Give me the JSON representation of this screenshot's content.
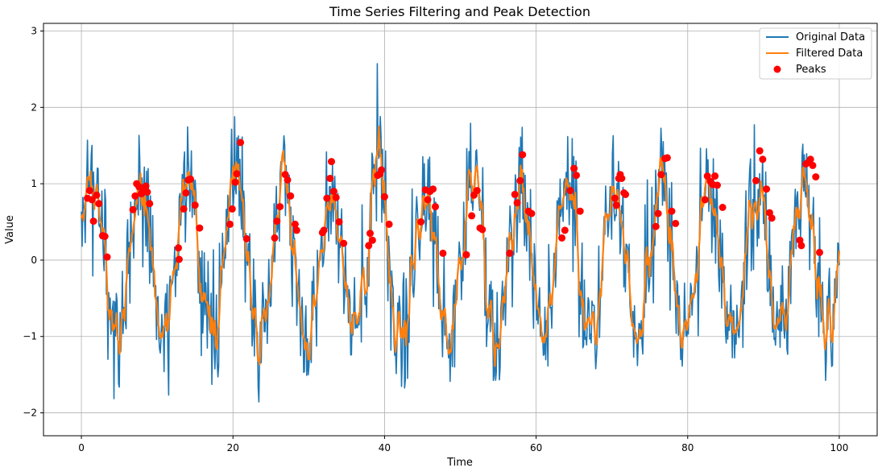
{
  "chart_data": {
    "type": "line",
    "title": "Time Series Filtering and Peak Detection",
    "xlabel": "Time",
    "ylabel": "Value",
    "xlim": [
      -5,
      105
    ],
    "ylim": [
      -2.3,
      3.1
    ],
    "xticks": [
      0,
      20,
      40,
      60,
      80,
      100
    ],
    "yticks": [
      -2,
      -1,
      0,
      1,
      2,
      3
    ],
    "grid": true,
    "legend_position": "top-right",
    "series": [
      {
        "name": "Original Data",
        "color": "#1f77b4",
        "kind": "line"
      },
      {
        "name": "Filtered Data",
        "color": "#ff7f0e",
        "kind": "line"
      },
      {
        "name": "Peaks",
        "color": "#ff0000",
        "kind": "markers"
      }
    ],
    "signal": {
      "x_start": 0,
      "x_end": 100,
      "n_points": 1000,
      "base": "sin(2*pi*t/6.25)",
      "noise_std": 0.45,
      "filtered_window": 5
    },
    "peaks": [
      [
        0.8,
        0.81
      ],
      [
        1.1,
        0.91
      ],
      [
        1.4,
        0.79
      ],
      [
        1.6,
        0.51
      ],
      [
        2.0,
        0.85
      ],
      [
        2.3,
        0.74
      ],
      [
        2.8,
        0.32
      ],
      [
        3.1,
        0.31
      ],
      [
        3.4,
        0.04
      ],
      [
        6.8,
        0.66
      ],
      [
        7.1,
        0.84
      ],
      [
        7.3,
        1.0
      ],
      [
        7.6,
        0.96
      ],
      [
        7.9,
        0.87
      ],
      [
        8.2,
        0.91
      ],
      [
        8.5,
        0.97
      ],
      [
        8.7,
        0.89
      ],
      [
        9.0,
        0.74
      ],
      [
        12.8,
        0.16
      ],
      [
        12.9,
        0.01
      ],
      [
        13.5,
        0.67
      ],
      [
        13.8,
        0.88
      ],
      [
        14.1,
        1.05
      ],
      [
        14.4,
        1.06
      ],
      [
        15.0,
        0.72
      ],
      [
        15.6,
        0.42
      ],
      [
        19.6,
        0.47
      ],
      [
        19.9,
        0.67
      ],
      [
        20.3,
        1.02
      ],
      [
        20.5,
        1.13
      ],
      [
        21.0,
        1.54
      ],
      [
        21.8,
        0.28
      ],
      [
        25.5,
        0.29
      ],
      [
        25.8,
        0.51
      ],
      [
        26.2,
        0.7
      ],
      [
        26.9,
        1.12
      ],
      [
        27.2,
        1.05
      ],
      [
        27.6,
        0.84
      ],
      [
        28.2,
        0.47
      ],
      [
        28.4,
        0.39
      ],
      [
        31.8,
        0.36
      ],
      [
        32.0,
        0.39
      ],
      [
        32.4,
        0.81
      ],
      [
        32.8,
        1.07
      ],
      [
        33.0,
        1.29
      ],
      [
        33.3,
        0.9
      ],
      [
        33.6,
        0.82
      ],
      [
        34.0,
        0.5
      ],
      [
        34.6,
        0.22
      ],
      [
        37.9,
        0.19
      ],
      [
        38.1,
        0.35
      ],
      [
        38.4,
        0.26
      ],
      [
        39.1,
        1.11
      ],
      [
        39.4,
        1.13
      ],
      [
        39.6,
        1.18
      ],
      [
        40.0,
        0.83
      ],
      [
        40.6,
        0.47
      ],
      [
        44.8,
        0.5
      ],
      [
        45.4,
        0.92
      ],
      [
        45.7,
        0.79
      ],
      [
        46.0,
        0.9
      ],
      [
        46.4,
        0.93
      ],
      [
        46.7,
        0.7
      ],
      [
        47.7,
        0.09
      ],
      [
        50.8,
        0.07
      ],
      [
        51.5,
        0.58
      ],
      [
        51.8,
        0.85
      ],
      [
        52.2,
        0.91
      ],
      [
        52.6,
        0.42
      ],
      [
        52.9,
        0.4
      ],
      [
        56.5,
        0.09
      ],
      [
        57.2,
        0.86
      ],
      [
        57.5,
        0.75
      ],
      [
        57.9,
        1.04
      ],
      [
        58.2,
        1.38
      ],
      [
        59.0,
        0.64
      ],
      [
        59.4,
        0.61
      ],
      [
        63.4,
        0.29
      ],
      [
        63.8,
        0.39
      ],
      [
        64.5,
        0.91
      ],
      [
        65.0,
        1.2
      ],
      [
        65.3,
        1.11
      ],
      [
        65.8,
        0.64
      ],
      [
        70.4,
        0.81
      ],
      [
        70.6,
        0.72
      ],
      [
        70.9,
        1.07
      ],
      [
        71.1,
        1.12
      ],
      [
        71.3,
        1.07
      ],
      [
        71.6,
        0.88
      ],
      [
        71.8,
        0.86
      ],
      [
        75.8,
        0.44
      ],
      [
        76.1,
        0.61
      ],
      [
        76.5,
        1.12
      ],
      [
        77.0,
        1.33
      ],
      [
        77.3,
        1.34
      ],
      [
        77.9,
        0.64
      ],
      [
        78.4,
        0.48
      ],
      [
        82.3,
        0.79
      ],
      [
        82.6,
        1.1
      ],
      [
        83.0,
        1.03
      ],
      [
        83.3,
        0.99
      ],
      [
        83.6,
        1.1
      ],
      [
        83.9,
        0.98
      ],
      [
        84.6,
        0.69
      ],
      [
        89.0,
        1.04
      ],
      [
        89.5,
        1.43
      ],
      [
        89.9,
        1.32
      ],
      [
        90.4,
        0.93
      ],
      [
        90.8,
        0.62
      ],
      [
        91.1,
        0.55
      ],
      [
        94.8,
        0.26
      ],
      [
        95.0,
        0.19
      ],
      [
        95.6,
        1.26
      ],
      [
        95.9,
        1.28
      ],
      [
        96.2,
        1.32
      ],
      [
        96.5,
        1.24
      ],
      [
        96.9,
        1.09
      ],
      [
        97.4,
        0.1
      ]
    ]
  }
}
